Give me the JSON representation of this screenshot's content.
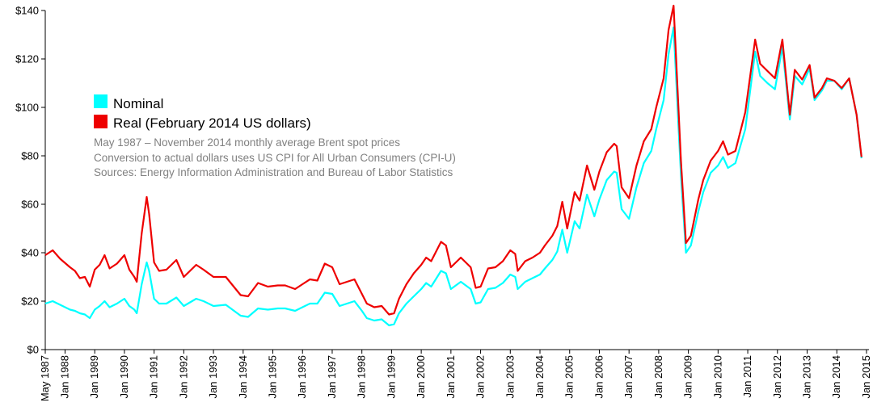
{
  "chart_data": {
    "type": "line",
    "title": "",
    "xlabel": "",
    "ylabel": "",
    "ylim": [
      0,
      140
    ],
    "xlim": [
      "1987-05",
      "2015-02"
    ],
    "grid": false,
    "y_ticks": [
      {
        "value": 0,
        "label": "$0"
      },
      {
        "value": 20,
        "label": "$20"
      },
      {
        "value": 40,
        "label": "$40"
      },
      {
        "value": 60,
        "label": "$60"
      },
      {
        "value": 80,
        "label": "$80"
      },
      {
        "value": 100,
        "label": "$100"
      },
      {
        "value": 120,
        "label": "$120"
      },
      {
        "value": 140,
        "label": "$140"
      }
    ],
    "x_ticks": [
      {
        "value": "1987-05",
        "label": "May 1987"
      },
      {
        "value": "1988-01",
        "label": "Jan 1988"
      },
      {
        "value": "1989-01",
        "label": "Jan 1989"
      },
      {
        "value": "1990-01",
        "label": "Jan 1990"
      },
      {
        "value": "1991-01",
        "label": "Jan 1991"
      },
      {
        "value": "1992-01",
        "label": "Jan 1992"
      },
      {
        "value": "1993-01",
        "label": "Jan 1993"
      },
      {
        "value": "1994-01",
        "label": "Jan 1994"
      },
      {
        "value": "1995-01",
        "label": "Jan 1995"
      },
      {
        "value": "1996-01",
        "label": "Jan 1996"
      },
      {
        "value": "1997-01",
        "label": "Jan 1997"
      },
      {
        "value": "1998-01",
        "label": "Jan 1998"
      },
      {
        "value": "1999-01",
        "label": "Jan 1999"
      },
      {
        "value": "2000-01",
        "label": "Jan 2000"
      },
      {
        "value": "2001-01",
        "label": "Jan 2001"
      },
      {
        "value": "2002-01",
        "label": "Jan 2002"
      },
      {
        "value": "2003-01",
        "label": "Jan 2003"
      },
      {
        "value": "2004-01",
        "label": "Jan 2004"
      },
      {
        "value": "2005-01",
        "label": "Jan 2005"
      },
      {
        "value": "2006-01",
        "label": "Jan 2006"
      },
      {
        "value": "2007-01",
        "label": "Jan 2007"
      },
      {
        "value": "2008-01",
        "label": "Jan 2008"
      },
      {
        "value": "2009-01",
        "label": "Jan 2009"
      },
      {
        "value": "2010-01",
        "label": "Jan 2010"
      },
      {
        "value": "2011-01",
        "label": "Jan 2011"
      },
      {
        "value": "2012-01",
        "label": "Jan 2012"
      },
      {
        "value": "2013-01",
        "label": "Jan 2013"
      },
      {
        "value": "2014-01",
        "label": "Jan 2014"
      },
      {
        "value": "2015-01",
        "label": "Jan 2015"
      }
    ],
    "legend_position": "top-left",
    "notes": [
      "May 1987 – November 2014 monthly average Brent spot prices",
      "Conversion to actual dollars uses US CPI for All Urban Consumers (CPI-U)",
      "Sources: Energy Information Administration and Bureau of Labor Statistics"
    ],
    "series": [
      {
        "name": "Nominal",
        "color": "#00ffff",
        "points": [
          [
            "1987-05",
            19
          ],
          [
            "1987-08",
            20
          ],
          [
            "1987-11",
            18.5
          ],
          [
            "1988-03",
            16.5
          ],
          [
            "1988-05",
            16
          ],
          [
            "1988-07",
            15
          ],
          [
            "1988-09",
            14.5
          ],
          [
            "1988-11",
            13
          ],
          [
            "1989-01",
            16.5
          ],
          [
            "1989-03",
            18
          ],
          [
            "1989-05",
            20
          ],
          [
            "1989-07",
            17.5
          ],
          [
            "1989-10",
            19
          ],
          [
            "1990-01",
            21
          ],
          [
            "1990-03",
            18
          ],
          [
            "1990-05",
            16.5
          ],
          [
            "1990-06",
            15
          ],
          [
            "1990-08",
            27
          ],
          [
            "1990-10",
            36
          ],
          [
            "1990-11",
            32.5
          ],
          [
            "1991-01",
            21
          ],
          [
            "1991-03",
            19
          ],
          [
            "1991-06",
            19
          ],
          [
            "1991-10",
            21.5
          ],
          [
            "1992-01",
            18
          ],
          [
            "1992-06",
            21
          ],
          [
            "1992-09",
            20
          ],
          [
            "1993-01",
            18
          ],
          [
            "1993-06",
            18.5
          ],
          [
            "1993-12",
            14
          ],
          [
            "1994-03",
            13.5
          ],
          [
            "1994-07",
            17
          ],
          [
            "1994-11",
            16.5
          ],
          [
            "1995-03",
            17
          ],
          [
            "1995-06",
            17
          ],
          [
            "1995-10",
            16
          ],
          [
            "1996-01",
            17.5
          ],
          [
            "1996-04",
            19
          ],
          [
            "1996-07",
            19
          ],
          [
            "1996-10",
            23.5
          ],
          [
            "1997-01",
            23
          ],
          [
            "1997-04",
            18
          ],
          [
            "1997-07",
            19
          ],
          [
            "1997-10",
            20
          ],
          [
            "1998-01",
            16
          ],
          [
            "1998-03",
            13
          ],
          [
            "1998-06",
            12
          ],
          [
            "1998-09",
            12.5
          ],
          [
            "1998-12",
            10
          ],
          [
            "1999-02",
            10.5
          ],
          [
            "1999-04",
            15
          ],
          [
            "1999-07",
            19
          ],
          [
            "1999-10",
            22
          ],
          [
            "2000-01",
            25
          ],
          [
            "2000-03",
            27.5
          ],
          [
            "2000-05",
            26
          ],
          [
            "2000-09",
            32.5
          ],
          [
            "2000-11",
            31.5
          ],
          [
            "2001-01",
            25
          ],
          [
            "2001-05",
            28
          ],
          [
            "2001-09",
            25
          ],
          [
            "2001-11",
            19
          ],
          [
            "2002-01",
            19.5
          ],
          [
            "2002-04",
            25
          ],
          [
            "2002-07",
            25.5
          ],
          [
            "2002-10",
            27.5
          ],
          [
            "2003-01",
            31
          ],
          [
            "2003-03",
            30
          ],
          [
            "2003-04",
            25
          ],
          [
            "2003-07",
            28
          ],
          [
            "2003-10",
            29.5
          ],
          [
            "2004-01",
            31
          ],
          [
            "2004-03",
            33.5
          ],
          [
            "2004-06",
            37
          ],
          [
            "2004-08",
            40.5
          ],
          [
            "2004-10",
            49.5
          ],
          [
            "2004-12",
            40
          ],
          [
            "2005-03",
            53
          ],
          [
            "2005-05",
            50
          ],
          [
            "2005-08",
            64
          ],
          [
            "2005-11",
            55
          ],
          [
            "2006-01",
            62
          ],
          [
            "2006-04",
            70
          ],
          [
            "2006-07",
            73.5
          ],
          [
            "2006-08",
            73
          ],
          [
            "2006-10",
            58
          ],
          [
            "2007-01",
            54
          ],
          [
            "2007-04",
            67
          ],
          [
            "2007-07",
            77
          ],
          [
            "2007-10",
            82
          ],
          [
            "2007-12",
            91
          ],
          [
            "2008-03",
            103
          ],
          [
            "2008-05",
            122
          ],
          [
            "2008-07",
            133
          ],
          [
            "2008-08",
            113
          ],
          [
            "2008-10",
            72
          ],
          [
            "2008-12",
            40
          ],
          [
            "2009-02",
            43
          ],
          [
            "2009-05",
            57
          ],
          [
            "2009-07",
            65
          ],
          [
            "2009-10",
            73
          ],
          [
            "2010-01",
            76
          ],
          [
            "2010-03",
            79.5
          ],
          [
            "2010-05",
            75
          ],
          [
            "2010-08",
            77
          ],
          [
            "2010-12",
            91
          ],
          [
            "2011-04",
            123
          ],
          [
            "2011-06",
            113
          ],
          [
            "2011-09",
            110
          ],
          [
            "2011-12",
            107.5
          ],
          [
            "2012-03",
            125
          ],
          [
            "2012-06",
            95
          ],
          [
            "2012-08",
            113
          ],
          [
            "2012-11",
            109.5
          ],
          [
            "2013-02",
            116
          ],
          [
            "2013-04",
            103
          ],
          [
            "2013-07",
            107
          ],
          [
            "2013-09",
            111
          ],
          [
            "2013-12",
            111
          ],
          [
            "2014-03",
            107.5
          ],
          [
            "2014-06",
            112
          ],
          [
            "2014-09",
            97
          ],
          [
            "2014-11",
            79
          ]
        ]
      },
      {
        "name": "Real (February 2014 US dollars)",
        "color": "#ee0000",
        "points": [
          [
            "1987-05",
            39
          ],
          [
            "1987-08",
            41
          ],
          [
            "1987-11",
            37.5
          ],
          [
            "1988-03",
            34
          ],
          [
            "1988-05",
            32.5
          ],
          [
            "1988-07",
            29.5
          ],
          [
            "1988-09",
            30
          ],
          [
            "1988-11",
            26
          ],
          [
            "1989-01",
            33
          ],
          [
            "1989-03",
            35
          ],
          [
            "1989-05",
            39
          ],
          [
            "1989-07",
            33.5
          ],
          [
            "1989-10",
            35.5
          ],
          [
            "1990-01",
            39
          ],
          [
            "1990-03",
            33
          ],
          [
            "1990-05",
            30
          ],
          [
            "1990-06",
            28
          ],
          [
            "1990-08",
            48
          ],
          [
            "1990-10",
            63
          ],
          [
            "1990-11",
            56
          ],
          [
            "1991-01",
            36
          ],
          [
            "1991-03",
            32.5
          ],
          [
            "1991-06",
            33
          ],
          [
            "1991-10",
            37
          ],
          [
            "1992-01",
            30
          ],
          [
            "1992-06",
            35
          ],
          [
            "1992-09",
            33
          ],
          [
            "1993-01",
            30
          ],
          [
            "1993-06",
            30
          ],
          [
            "1993-12",
            22.5
          ],
          [
            "1994-03",
            22
          ],
          [
            "1994-07",
            27.5
          ],
          [
            "1994-11",
            26
          ],
          [
            "1995-03",
            26.5
          ],
          [
            "1995-06",
            26.5
          ],
          [
            "1995-10",
            25
          ],
          [
            "1996-01",
            27
          ],
          [
            "1996-04",
            29
          ],
          [
            "1996-07",
            28.5
          ],
          [
            "1996-10",
            35.5
          ],
          [
            "1997-01",
            34
          ],
          [
            "1997-04",
            27
          ],
          [
            "1997-07",
            28
          ],
          [
            "1997-10",
            29
          ],
          [
            "1998-01",
            23
          ],
          [
            "1998-03",
            19
          ],
          [
            "1998-06",
            17.5
          ],
          [
            "1998-09",
            18
          ],
          [
            "1998-12",
            14.5
          ],
          [
            "1999-02",
            15
          ],
          [
            "1999-04",
            21
          ],
          [
            "1999-07",
            27
          ],
          [
            "1999-10",
            31.5
          ],
          [
            "2000-01",
            35
          ],
          [
            "2000-03",
            38
          ],
          [
            "2000-05",
            36.5
          ],
          [
            "2000-09",
            44.5
          ],
          [
            "2000-11",
            43
          ],
          [
            "2001-01",
            34
          ],
          [
            "2001-05",
            38
          ],
          [
            "2001-09",
            34
          ],
          [
            "2001-11",
            25.5
          ],
          [
            "2002-01",
            26
          ],
          [
            "2002-04",
            33.5
          ],
          [
            "2002-07",
            34
          ],
          [
            "2002-10",
            36.5
          ],
          [
            "2003-01",
            41
          ],
          [
            "2003-03",
            39.5
          ],
          [
            "2003-04",
            32.5
          ],
          [
            "2003-07",
            36.5
          ],
          [
            "2003-10",
            38
          ],
          [
            "2004-01",
            40
          ],
          [
            "2004-03",
            43
          ],
          [
            "2004-06",
            47
          ],
          [
            "2004-08",
            51
          ],
          [
            "2004-10",
            61
          ],
          [
            "2004-12",
            50
          ],
          [
            "2005-03",
            65
          ],
          [
            "2005-05",
            61.5
          ],
          [
            "2005-08",
            76
          ],
          [
            "2005-11",
            66
          ],
          [
            "2006-01",
            73.5
          ],
          [
            "2006-04",
            81.5
          ],
          [
            "2006-07",
            85
          ],
          [
            "2006-08",
            84
          ],
          [
            "2006-10",
            67
          ],
          [
            "2007-01",
            62.5
          ],
          [
            "2007-04",
            76
          ],
          [
            "2007-07",
            86
          ],
          [
            "2007-10",
            91
          ],
          [
            "2007-12",
            100
          ],
          [
            "2008-03",
            112
          ],
          [
            "2008-05",
            132
          ],
          [
            "2008-07",
            142
          ],
          [
            "2008-08",
            121
          ],
          [
            "2008-10",
            78
          ],
          [
            "2008-12",
            44
          ],
          [
            "2009-02",
            47
          ],
          [
            "2009-05",
            62
          ],
          [
            "2009-07",
            70
          ],
          [
            "2009-10",
            78
          ],
          [
            "2010-01",
            82
          ],
          [
            "2010-03",
            86
          ],
          [
            "2010-05",
            80.5
          ],
          [
            "2010-08",
            82
          ],
          [
            "2010-12",
            98
          ],
          [
            "2011-04",
            128
          ],
          [
            "2011-06",
            118
          ],
          [
            "2011-09",
            115
          ],
          [
            "2011-12",
            112
          ],
          [
            "2012-03",
            128
          ],
          [
            "2012-06",
            97
          ],
          [
            "2012-08",
            115.5
          ],
          [
            "2012-11",
            111.5
          ],
          [
            "2013-02",
            117.5
          ],
          [
            "2013-04",
            104
          ],
          [
            "2013-07",
            108
          ],
          [
            "2013-09",
            112
          ],
          [
            "2013-12",
            111
          ],
          [
            "2014-03",
            108
          ],
          [
            "2014-06",
            112
          ],
          [
            "2014-09",
            97
          ],
          [
            "2014-11",
            79.5
          ]
        ]
      }
    ]
  }
}
